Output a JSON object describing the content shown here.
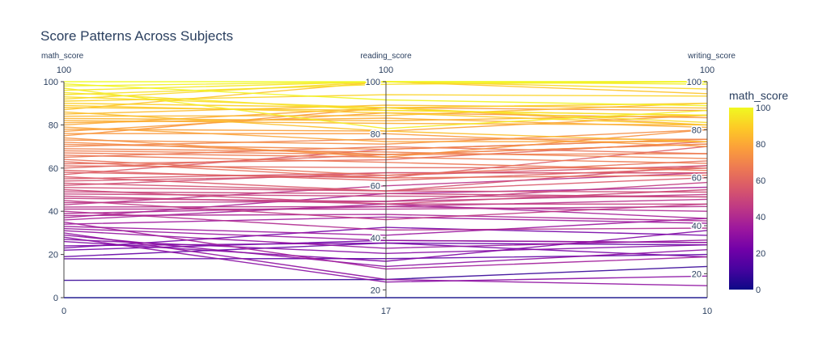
{
  "chart_data": {
    "type": "parallel_coordinates",
    "title": "Score Patterns Across Subjects",
    "dimensions": [
      {
        "label": "math_score",
        "range": [
          0,
          100
        ],
        "ticks": [
          0,
          20,
          40,
          60,
          80,
          100
        ],
        "range_labels": [
          "0",
          "100"
        ]
      },
      {
        "label": "reading_score",
        "range": [
          17,
          100
        ],
        "ticks": [
          20,
          40,
          60,
          80,
          100
        ],
        "range_labels": [
          "17",
          "100"
        ]
      },
      {
        "label": "writing_score",
        "range": [
          10,
          100
        ],
        "ticks": [
          20,
          40,
          60,
          80,
          100
        ],
        "range_labels": [
          "10",
          "100"
        ]
      }
    ],
    "color_by": "math_score",
    "colorscale": [
      "#0d0887",
      "#46039f",
      "#7201a8",
      "#9c179e",
      "#bd3786",
      "#d8576b",
      "#ed7953",
      "#fb9f3a",
      "#fdca26",
      "#f0f921"
    ],
    "colorbar": {
      "title": "math_score",
      "range": [
        0,
        100
      ],
      "ticks": [
        0,
        20,
        40,
        60,
        80,
        100
      ]
    },
    "records": [
      [
        0,
        17,
        10
      ],
      [
        8,
        24,
        23
      ],
      [
        18,
        32,
        28
      ],
      [
        19,
        38,
        32
      ],
      [
        22,
        39,
        33
      ],
      [
        23,
        44,
        36
      ],
      [
        24,
        38,
        27
      ],
      [
        26,
        31,
        38
      ],
      [
        27,
        34,
        32
      ],
      [
        28,
        23,
        19
      ],
      [
        29,
        29,
        30
      ],
      [
        30,
        24,
        15
      ],
      [
        31,
        36,
        34
      ],
      [
        32,
        39,
        33
      ],
      [
        33,
        41,
        43
      ],
      [
        34,
        48,
        41
      ],
      [
        35,
        28,
        27
      ],
      [
        36,
        53,
        43
      ],
      [
        37,
        57,
        56
      ],
      [
        38,
        49,
        42
      ],
      [
        39,
        52,
        46
      ],
      [
        40,
        43,
        39
      ],
      [
        41,
        51,
        48
      ],
      [
        42,
        52,
        51
      ],
      [
        43,
        60,
        62
      ],
      [
        44,
        54,
        53
      ],
      [
        45,
        47,
        49
      ],
      [
        46,
        54,
        58
      ],
      [
        47,
        53,
        49
      ],
      [
        48,
        56,
        52
      ],
      [
        49,
        57,
        52
      ],
      [
        50,
        53,
        55
      ],
      [
        51,
        58,
        54
      ],
      [
        52,
        65,
        62
      ],
      [
        53,
        58,
        65
      ],
      [
        54,
        64,
        65
      ],
      [
        55,
        65,
        62
      ],
      [
        56,
        58,
        60
      ],
      [
        57,
        74,
        76
      ],
      [
        58,
        63,
        73
      ],
      [
        59,
        62,
        64
      ],
      [
        60,
        72,
        74
      ],
      [
        61,
        67,
        64
      ],
      [
        62,
        70,
        75
      ],
      [
        63,
        63,
        61
      ],
      [
        64,
        64,
        67
      ],
      [
        65,
        75,
        70
      ],
      [
        66,
        69,
        63
      ],
      [
        67,
        71,
        66
      ],
      [
        68,
        72,
        70
      ],
      [
        69,
        73,
        68
      ],
      [
        70,
        78,
        76
      ],
      [
        71,
        74,
        76
      ],
      [
        72,
        72,
        74
      ],
      [
        73,
        76,
        80
      ],
      [
        74,
        71,
        80
      ],
      [
        75,
        90,
        88
      ],
      [
        76,
        80,
        73
      ],
      [
        77,
        88,
        85
      ],
      [
        78,
        81,
        86
      ],
      [
        79,
        77,
        75
      ],
      [
        80,
        90,
        82
      ],
      [
        81,
        86,
        81
      ],
      [
        82,
        84,
        82
      ],
      [
        83,
        85,
        86
      ],
      [
        84,
        87,
        91
      ],
      [
        85,
        91,
        89
      ],
      [
        86,
        81,
        75
      ],
      [
        87,
        100,
        95
      ],
      [
        88,
        89,
        86
      ],
      [
        89,
        88,
        82
      ],
      [
        90,
        90,
        91
      ],
      [
        91,
        95,
        94
      ],
      [
        92,
        100,
        97
      ],
      [
        93,
        90,
        83
      ],
      [
        94,
        99,
        100
      ],
      [
        95,
        89,
        86
      ],
      [
        96,
        100,
        100
      ],
      [
        97,
        82,
        88
      ],
      [
        98,
        100,
        99
      ],
      [
        99,
        93,
        90
      ],
      [
        100,
        100,
        100
      ]
    ]
  }
}
